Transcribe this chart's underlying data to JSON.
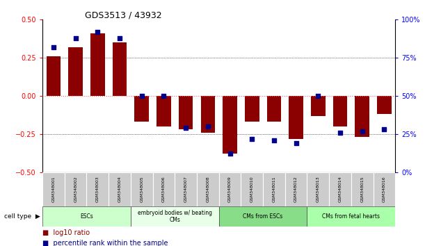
{
  "title": "GDS3513 / 43932",
  "samples": [
    "GSM348001",
    "GSM348002",
    "GSM348003",
    "GSM348004",
    "GSM348005",
    "GSM348006",
    "GSM348007",
    "GSM348008",
    "GSM348009",
    "GSM348010",
    "GSM348011",
    "GSM348012",
    "GSM348013",
    "GSM348014",
    "GSM348015",
    "GSM348016"
  ],
  "log10_ratio": [
    0.26,
    0.32,
    0.41,
    0.35,
    -0.17,
    -0.2,
    -0.22,
    -0.24,
    -0.38,
    -0.17,
    -0.17,
    -0.28,
    -0.13,
    -0.2,
    -0.27,
    -0.12
  ],
  "percentile_rank": [
    82,
    88,
    92,
    88,
    50,
    50,
    29,
    30,
    12,
    22,
    21,
    19,
    50,
    26,
    27,
    28
  ],
  "bar_color": "#8B0000",
  "dot_color": "#00008B",
  "zero_line_color": "#FF6666",
  "dotline_color": "#555555",
  "cell_types": [
    {
      "label": "ESCs",
      "start": 0,
      "end": 4,
      "color": "#ccffcc"
    },
    {
      "label": "embryoid bodies w/ beating\nCMs",
      "start": 4,
      "end": 8,
      "color": "#e8ffe8"
    },
    {
      "label": "CMs from ESCs",
      "start": 8,
      "end": 12,
      "color": "#88dd88"
    },
    {
      "label": "CMs from fetal hearts",
      "start": 12,
      "end": 16,
      "color": "#aaffaa"
    }
  ],
  "ylim": [
    -0.5,
    0.5
  ],
  "y2lim": [
    0,
    100
  ],
  "yticks": [
    -0.5,
    -0.25,
    0.0,
    0.25,
    0.5
  ],
  "y2ticks": [
    0,
    25,
    50,
    75,
    100
  ],
  "hlines": [
    -0.25,
    0.0,
    0.25
  ],
  "hline_styles": [
    "dotted",
    "dotted",
    "dotted"
  ],
  "bar_width": 0.65
}
